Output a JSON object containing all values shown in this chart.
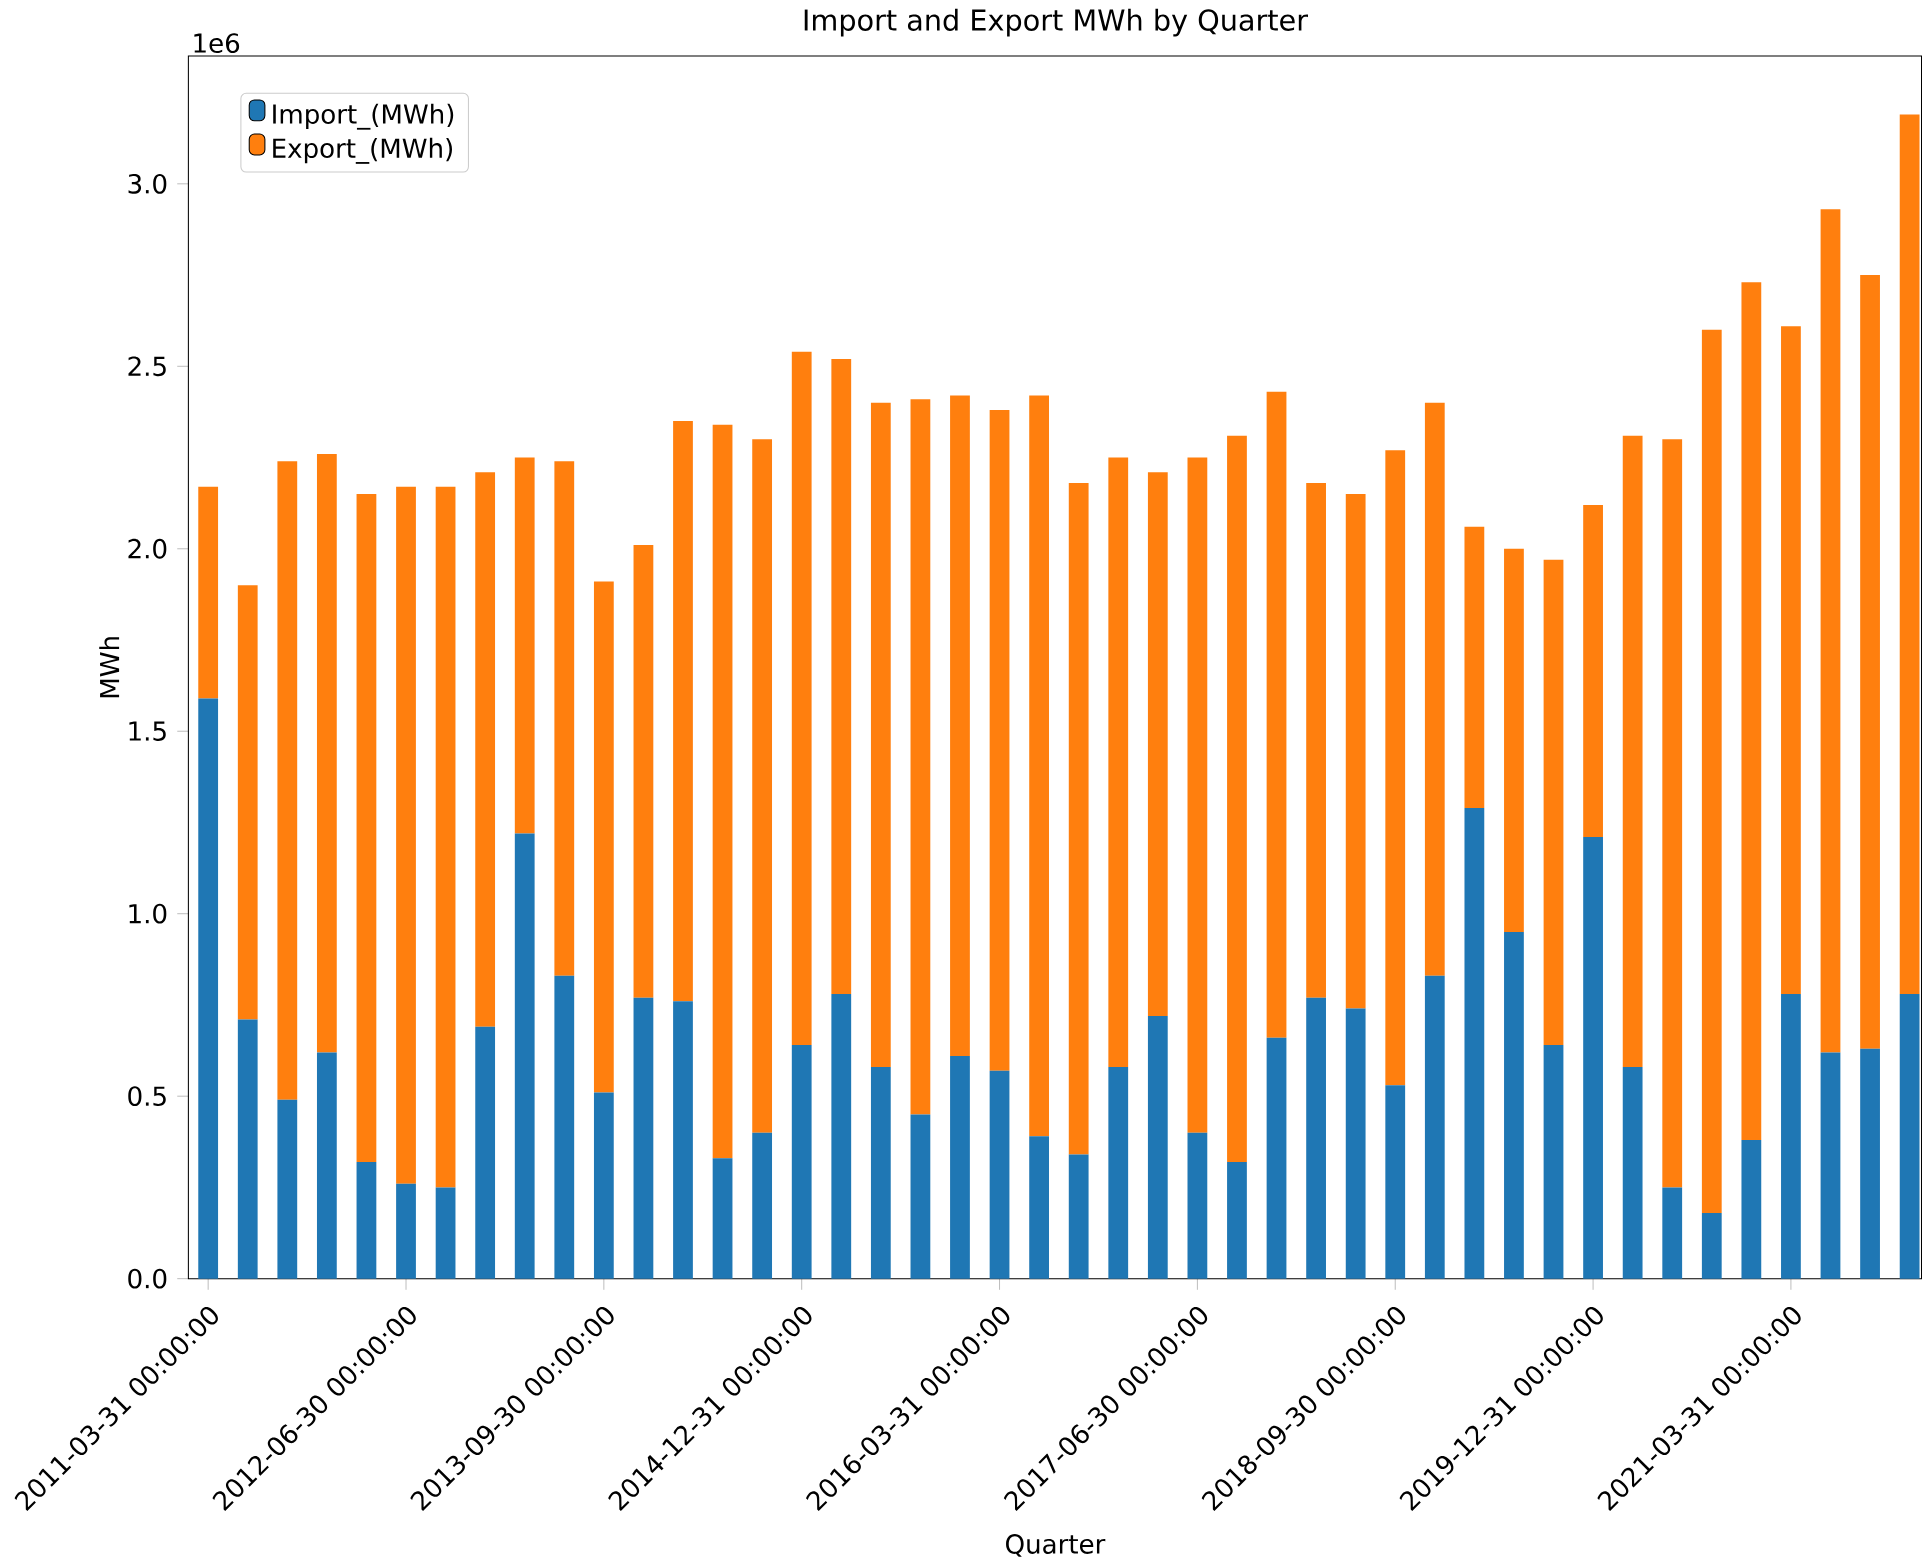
{
  "chart_data": {
    "type": "bar",
    "title": "Import and Export MWh by Quarter",
    "xlabel": "Quarter",
    "ylabel": "MWh",
    "annotations": [
      "1e6"
    ],
    "categories": [
      "2011-03-31 00:00:00",
      null,
      null,
      null,
      null,
      "2012-06-30 00:00:00",
      null,
      null,
      null,
      null,
      "2013-09-30 00:00:00",
      null,
      null,
      null,
      null,
      "2014-12-31 00:00:00",
      null,
      null,
      null,
      null,
      "2016-03-31 00:00:00",
      null,
      null,
      null,
      null,
      "2017-06-30 00:00:00",
      null,
      null,
      null,
      null,
      "2018-09-30 00:00:00",
      null,
      null,
      null,
      null,
      "2019-12-31 00:00:00",
      null,
      null,
      null,
      null,
      "2021-03-31 00:00:00",
      null,
      null,
      null
    ],
    "stacked": true,
    "series": [
      {
        "name": "Import_(MWh)",
        "color": "#1f77b4",
        "values": [
          1.59,
          0.71,
          0.49,
          0.62,
          0.32,
          0.26,
          0.25,
          0.69,
          1.22,
          0.83,
          0.51,
          0.77,
          0.76,
          0.33,
          0.4,
          0.64,
          0.78,
          0.58,
          0.45,
          0.61,
          0.57,
          0.39,
          0.34,
          0.58,
          0.72,
          0.4,
          0.32,
          0.66,
          0.77,
          0.74,
          0.53,
          0.83,
          1.29,
          0.95,
          0.64,
          1.21,
          0.58,
          0.25,
          0.18,
          0.38,
          0.78,
          0.62,
          0.63,
          0.78
        ]
      },
      {
        "name": "Export_(MWh)",
        "color": "#ff7f0e",
        "values": [
          0.58,
          1.19,
          1.75,
          1.64,
          1.83,
          1.91,
          1.92,
          1.52,
          1.03,
          1.41,
          1.4,
          1.24,
          1.59,
          2.01,
          1.9,
          1.9,
          1.74,
          1.82,
          1.96,
          1.81,
          1.81,
          2.03,
          1.84,
          1.67,
          1.49,
          1.85,
          1.99,
          1.77,
          1.41,
          1.41,
          1.74,
          1.57,
          0.77,
          1.05,
          1.33,
          0.91,
          1.73,
          2.05,
          2.42,
          2.35,
          1.83,
          2.31,
          2.12,
          2.41
        ]
      }
    ],
    "ylim": [
      0,
      3.35
    ],
    "yticks": [
      {
        "value": 0,
        "label": "0.0"
      },
      {
        "value": 0.5,
        "label": "0.5"
      },
      {
        "value": 1,
        "label": "1.0"
      },
      {
        "value": 1.5,
        "label": "1.5"
      },
      {
        "value": 2,
        "label": "2.0"
      },
      {
        "value": 2.5,
        "label": "2.5"
      },
      {
        "value": 3,
        "label": "3.0"
      }
    ],
    "legend": "top left",
    "grid": false
  }
}
